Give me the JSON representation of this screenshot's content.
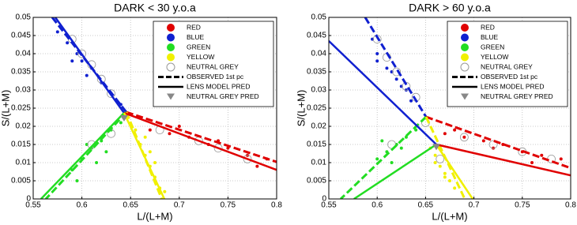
{
  "chart_data": [
    {
      "type": "scatter",
      "title": "DARK  < 30 y.o.a",
      "x_label": "L/(L+M)",
      "y_label": "S/(L+M)",
      "xlim": [
        0.55,
        0.8
      ],
      "ylim": [
        0,
        0.05
      ],
      "xticks": [
        0.55,
        0.6,
        0.65,
        0.7,
        0.75,
        0.8
      ],
      "yticks": [
        0,
        0.005,
        0.01,
        0.015,
        0.02,
        0.025,
        0.03,
        0.035,
        0.04,
        0.045,
        0.05
      ],
      "grid": true,
      "legend": "upper right",
      "series": [
        {
          "name": "RED",
          "color": "#e00000",
          "x": [
            0.67,
            0.69,
            0.71,
            0.73,
            0.75,
            0.77,
            0.79,
            0.7,
            0.74,
            0.78
          ],
          "y": [
            0.019,
            0.018,
            0.017,
            0.015,
            0.014,
            0.012,
            0.011,
            0.02,
            0.016,
            0.009
          ]
        },
        {
          "name": "BLUE",
          "color": "#1020d0",
          "x": [
            0.575,
            0.585,
            0.595,
            0.6,
            0.61,
            0.62,
            0.63,
            0.64,
            0.59,
            0.605
          ],
          "y": [
            0.046,
            0.043,
            0.04,
            0.038,
            0.036,
            0.032,
            0.029,
            0.026,
            0.038,
            0.034
          ]
        },
        {
          "name": "GREEN",
          "color": "#22dd22",
          "x": [
            0.59,
            0.6,
            0.61,
            0.62,
            0.63,
            0.64,
            0.605,
            0.615,
            0.625,
            0.595
          ],
          "y": [
            0.008,
            0.011,
            0.014,
            0.016,
            0.019,
            0.021,
            0.015,
            0.01,
            0.013,
            0.005
          ]
        },
        {
          "name": "YELLOW",
          "color": "#f0f000",
          "x": [
            0.655,
            0.66,
            0.665,
            0.67,
            0.675,
            0.68,
            0.665,
            0.67,
            0.675,
            0.685
          ],
          "y": [
            0.019,
            0.015,
            0.012,
            0.009,
            0.006,
            0.003,
            0.017,
            0.013,
            0.01,
            0.002
          ]
        },
        {
          "name": "NEUTRAL GREY",
          "color": "#999999",
          "x": [
            0.6,
            0.61,
            0.62,
            0.63,
            0.59,
            0.68,
            0.72,
            0.74,
            0.77,
            0.61,
            0.63
          ],
          "y": [
            0.04,
            0.037,
            0.033,
            0.029,
            0.044,
            0.019,
            0.016,
            0.014,
            0.011,
            0.015,
            0.018
          ]
        }
      ],
      "observed_pc": {
        "name": "OBSERVED 1st pc",
        "lines": [
          {
            "color": "#1020d0",
            "x": [
              0.5695,
              0.6457
            ],
            "y": [
              0.05,
              0.0239
            ]
          },
          {
            "color": "#e00000",
            "x": [
              0.6457,
              0.8
            ],
            "y": [
              0.0239,
              0.0102
            ]
          },
          {
            "color": "#22dd22",
            "x": [
              0.6457,
              0.563
            ],
            "y": [
              0.0239,
              0
            ]
          },
          {
            "color": "#f0f000",
            "x": [
              0.6457,
              0.682
            ],
            "y": [
              0.0239,
              0
            ]
          }
        ]
      },
      "lens_model": {
        "name": "LENS MODEL PRED",
        "lines": [
          {
            "color": "#1020d0",
            "x": [
              0.5727,
              0.6433
            ],
            "y": [
              0.05,
              0.0237
            ]
          },
          {
            "color": "#e00000",
            "x": [
              0.6433,
              0.8
            ],
            "y": [
              0.0237,
              0.008
            ]
          },
          {
            "color": "#22dd22",
            "x": [
              0.6433,
              0.558
            ],
            "y": [
              0.0237,
              0
            ]
          },
          {
            "color": "#f0f000",
            "x": [
              0.6433,
              0.6847
            ],
            "y": [
              0.0237,
              0
            ]
          }
        ]
      },
      "neutral_pred": {
        "name": "NEUTRAL GREY PRED",
        "color": "#888888",
        "x": [
          0.6433
        ],
        "y": [
          0.0222
        ]
      }
    },
    {
      "type": "scatter",
      "title": "DARK  > 60 y.o.a",
      "x_label": "L/(L+M)",
      "y_label": "S/(L+M)",
      "xlim": [
        0.55,
        0.8
      ],
      "ylim": [
        0,
        0.05
      ],
      "xticks": [
        0.55,
        0.6,
        0.65,
        0.7,
        0.75,
        0.8
      ],
      "yticks": [
        0,
        0.005,
        0.01,
        0.015,
        0.02,
        0.025,
        0.03,
        0.035,
        0.04,
        0.045,
        0.05
      ],
      "grid": true,
      "legend": "upper right",
      "series": [
        {
          "name": "RED",
          "color": "#e00000",
          "x": [
            0.67,
            0.69,
            0.71,
            0.73,
            0.75,
            0.77,
            0.79,
            0.68,
            0.72,
            0.76
          ],
          "y": [
            0.018,
            0.017,
            0.016,
            0.015,
            0.013,
            0.012,
            0.011,
            0.019,
            0.014,
            0.01
          ]
        },
        {
          "name": "BLUE",
          "color": "#1020d0",
          "x": [
            0.595,
            0.6,
            0.61,
            0.62,
            0.63,
            0.635,
            0.6,
            0.615,
            0.625
          ],
          "y": [
            0.044,
            0.04,
            0.036,
            0.033,
            0.03,
            0.027,
            0.038,
            0.035,
            0.031
          ]
        },
        {
          "name": "GREEN",
          "color": "#22dd22",
          "x": [
            0.6,
            0.61,
            0.62,
            0.63,
            0.64,
            0.615,
            0.625,
            0.605
          ],
          "y": [
            0.011,
            0.013,
            0.015,
            0.017,
            0.019,
            0.01,
            0.014,
            0.016
          ]
        },
        {
          "name": "YELLOW",
          "color": "#f0f000",
          "x": [
            0.655,
            0.66,
            0.665,
            0.67,
            0.675,
            0.68,
            0.66,
            0.67
          ],
          "y": [
            0.014,
            0.012,
            0.009,
            0.007,
            0.005,
            0.003,
            0.01,
            0.006
          ]
        },
        {
          "name": "NEUTRAL GREY",
          "color": "#999999",
          "x": [
            0.61,
            0.62,
            0.63,
            0.64,
            0.6,
            0.69,
            0.72,
            0.75,
            0.78,
            0.615,
            0.665,
            0.65
          ],
          "y": [
            0.039,
            0.035,
            0.031,
            0.028,
            0.044,
            0.017,
            0.015,
            0.013,
            0.011,
            0.015,
            0.011,
            0.021
          ]
        }
      ],
      "observed_pc": {
        "name": "OBSERVED 1st pc",
        "lines": [
          {
            "color": "#1020d0",
            "x": [
              0.5876,
              0.6505
            ],
            "y": [
              0.05,
              0.0226
            ]
          },
          {
            "color": "#e00000",
            "x": [
              0.6505,
              0.8
            ],
            "y": [
              0.0226,
              0.0085
            ]
          },
          {
            "color": "#22dd22",
            "x": [
              0.6505,
              0.5623
            ],
            "y": [
              0.0226,
              0
            ]
          },
          {
            "color": "#f0f000",
            "x": [
              0.6505,
              0.6905
            ],
            "y": [
              0.0226,
              0
            ]
          }
        ]
      },
      "lens_model": {
        "name": "LENS MODEL PRED",
        "lines": [
          {
            "color": "#1020d0",
            "x": [
              0.55,
              0.6611
            ],
            "y": [
              0.0435,
              0.015
            ]
          },
          {
            "color": "#e00000",
            "x": [
              0.6611,
              0.8
            ],
            "y": [
              0.015,
              0.0065
            ]
          },
          {
            "color": "#22dd22",
            "x": [
              0.6611,
              0.576
            ],
            "y": [
              0.015,
              0
            ]
          },
          {
            "color": "#f0f000",
            "x": [
              0.6611,
              0.6987
            ],
            "y": [
              0.015,
              0
            ]
          }
        ]
      },
      "neutral_pred": {
        "name": "NEUTRAL GREY PRED",
        "color": "#888888",
        "x": [
          0.6611
        ],
        "y": [
          0.0143
        ]
      }
    }
  ]
}
